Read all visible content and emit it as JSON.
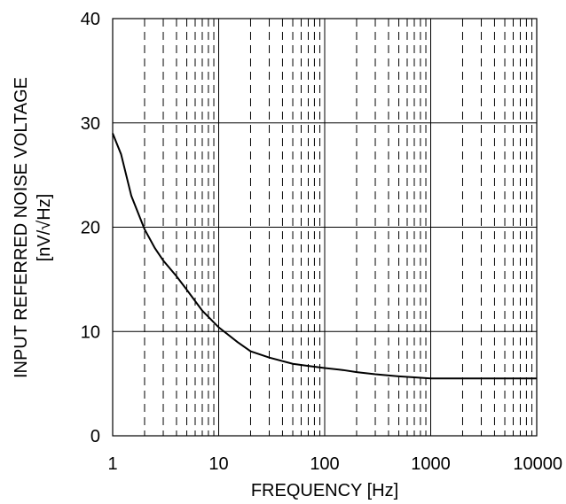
{
  "chart_data": {
    "type": "line",
    "title": "",
    "xlabel": "FREQUENCY [Hz]",
    "ylabel_line1": "INPUT REFERRED NOISE VOLTAGE",
    "ylabel_line2": "[nV/√Hz]",
    "x_scale": "log",
    "xlim": [
      1,
      10000
    ],
    "ylim": [
      0,
      40
    ],
    "x_ticks": [
      1,
      10,
      100,
      1000,
      10000
    ],
    "x_tick_labels": [
      "1",
      "10",
      "100",
      "1000",
      "10000"
    ],
    "y_ticks": [
      0,
      10,
      20,
      30,
      40
    ],
    "y_tick_labels": [
      "0",
      "10",
      "20",
      "30",
      "40"
    ],
    "grid": true,
    "colors": {
      "line": "#000000",
      "grid": "#000000",
      "background": "#ffffff"
    },
    "series": [
      {
        "x": [
          1,
          1.2,
          1.5,
          2,
          2.5,
          3,
          4,
          5,
          7,
          10,
          15,
          20,
          30,
          50,
          70,
          100,
          150,
          200,
          300,
          500,
          700,
          1000,
          2000,
          5000,
          10000
        ],
        "y": [
          29,
          27,
          23,
          19.8,
          18,
          16.8,
          15.3,
          14,
          12,
          10.4,
          9,
          8.1,
          7.5,
          6.9,
          6.7,
          6.5,
          6.3,
          6.1,
          5.9,
          5.7,
          5.6,
          5.5,
          5.5,
          5.5,
          5.5
        ]
      }
    ]
  }
}
